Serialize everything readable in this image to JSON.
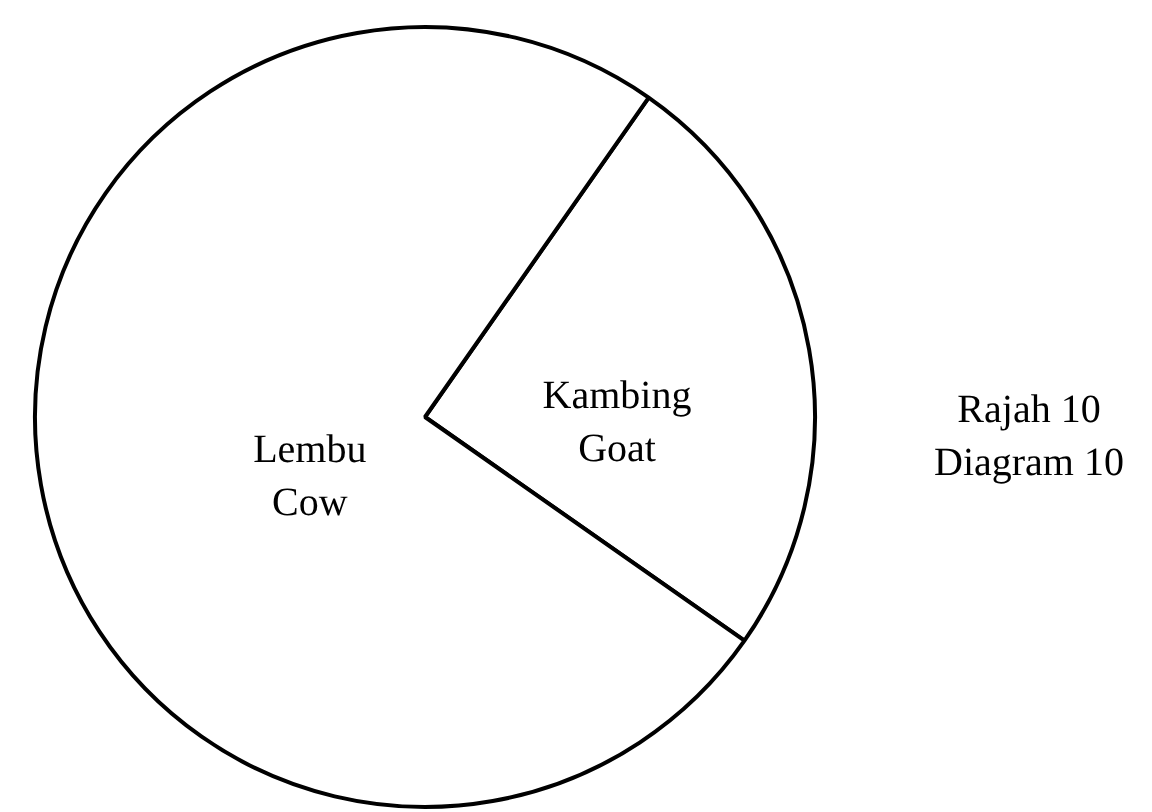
{
  "chart_data": {
    "type": "pie",
    "categories": [
      "Kambing\nGoat",
      "Lembu\nCow"
    ],
    "values": [
      25,
      75
    ],
    "colors": [
      "#ffffff",
      "#ffffff"
    ],
    "annotations": [
      "Rajah 10\nDiagram 10"
    ]
  }
}
